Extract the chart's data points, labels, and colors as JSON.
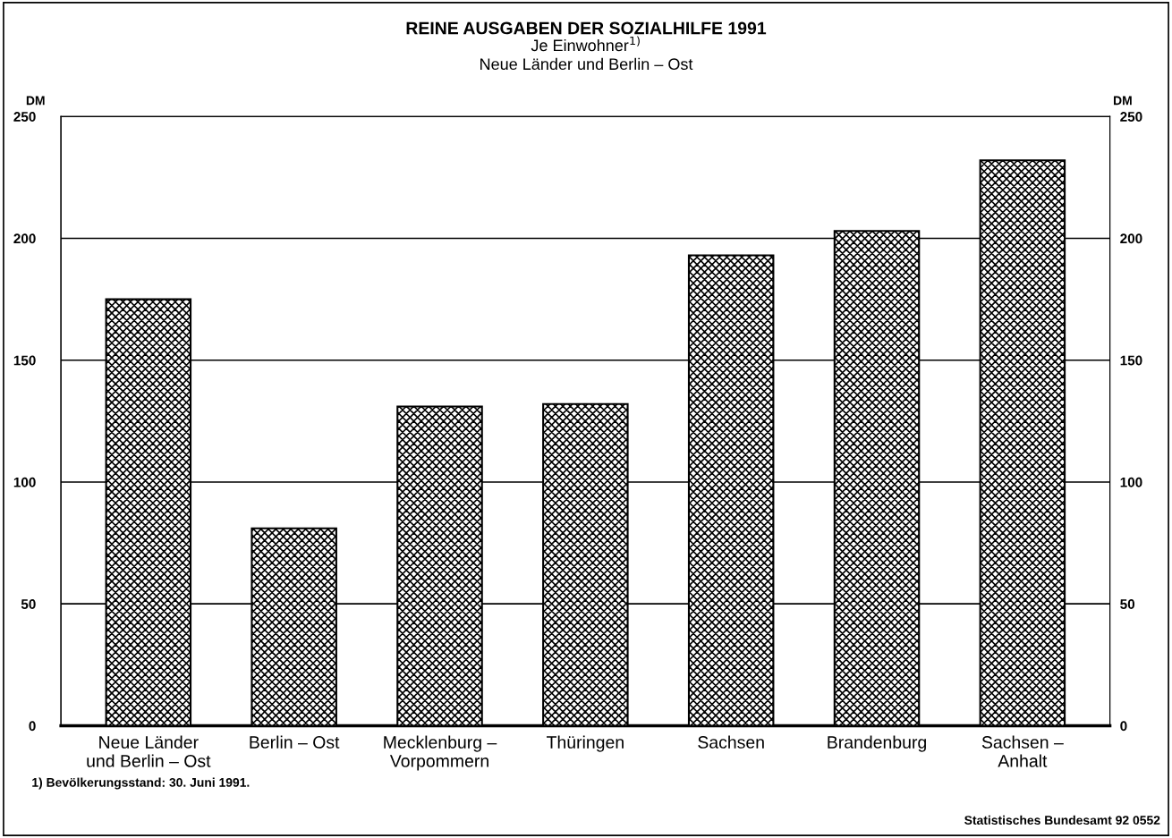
{
  "chart_data": {
    "type": "bar",
    "title": "REINE AUSGABEN DER SOZIALHILFE 1991",
    "subtitle": "Je Einwohner$^{1)}$\nNeue Länder und Berlin – Ost",
    "ylabel": "DM",
    "y2label": "DM",
    "categories": [
      "Neue Länder\nund Berlin – Ost",
      "Berlin – Ost",
      "Mecklenburg –\nVorpommern",
      "Thüringen",
      "Sachsen",
      "Brandenburg",
      "Sachsen –\nAnhalt"
    ],
    "values": [
      175,
      81,
      131,
      132,
      193,
      203,
      232
    ],
    "color": "#000000",
    "ylim": [
      0,
      250
    ],
    "yticks": [
      0,
      50,
      100,
      150,
      200,
      250
    ],
    "y2lim": [
      0,
      250
    ],
    "y2ticks": [
      0,
      50,
      100,
      150,
      200,
      250
    ],
    "grid": "y",
    "annotations": [
      "1) Bevölkerungsstand: 30. Juni 1991.",
      "Statistisches Bundesamt 92 0552"
    ]
  }
}
